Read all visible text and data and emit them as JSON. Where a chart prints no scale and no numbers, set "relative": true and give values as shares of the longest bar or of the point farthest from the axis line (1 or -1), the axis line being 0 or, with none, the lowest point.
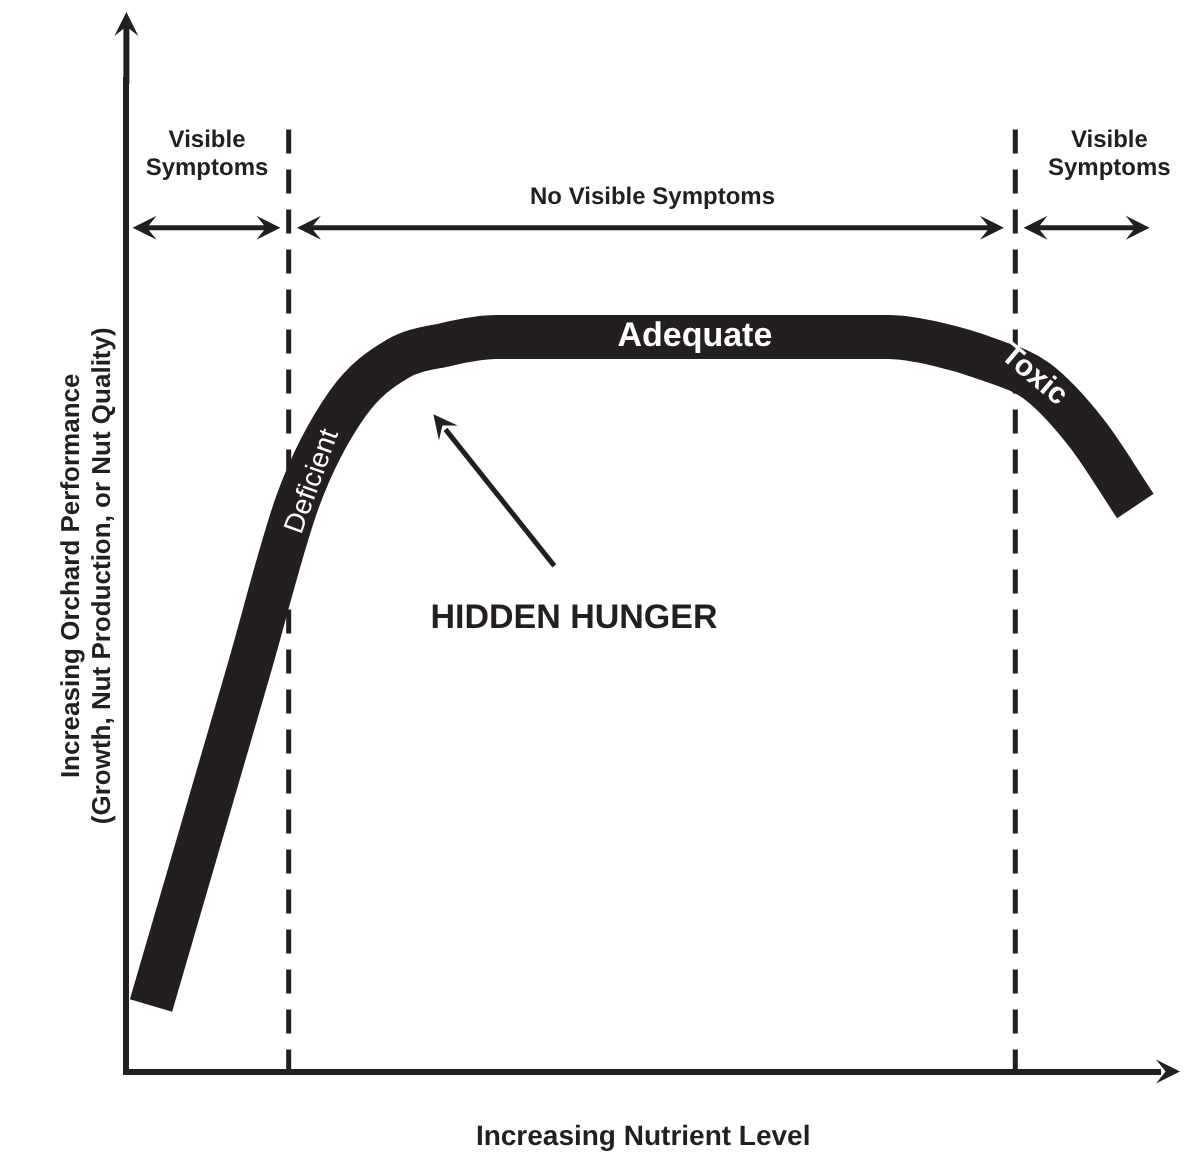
{
  "chart_data": {
    "type": "line",
    "relative": true,
    "xlabel": "Increasing Nutrient Level",
    "ylabel": "Increasing Orchard Performance\n(Growth, Nut Production, or Nut Quality)",
    "categories": [
      null,
      null,
      null,
      null,
      null,
      null,
      null,
      null,
      null,
      null,
      null,
      null,
      null,
      null,
      null,
      null,
      null,
      null,
      null,
      null,
      null
    ],
    "series": [
      {
        "color": "#231f20",
        "values": [
          0.09,
          0.32,
          0.55,
          0.78,
          0.91,
          0.97,
          0.99,
          1,
          1,
          1,
          1,
          1,
          1,
          1,
          1,
          1,
          0.99,
          0.97,
          0.94,
          0.87,
          0.77
        ]
      }
    ],
    "annotations": [
      "Visible Symptoms",
      "No Visible Symptoms",
      "Visible Symptoms",
      "Deficient",
      "Adequate",
      "Toxic",
      "HIDDEN HUNGER"
    ],
    "grid": false,
    "legend": false,
    "marker": "none"
  }
}
